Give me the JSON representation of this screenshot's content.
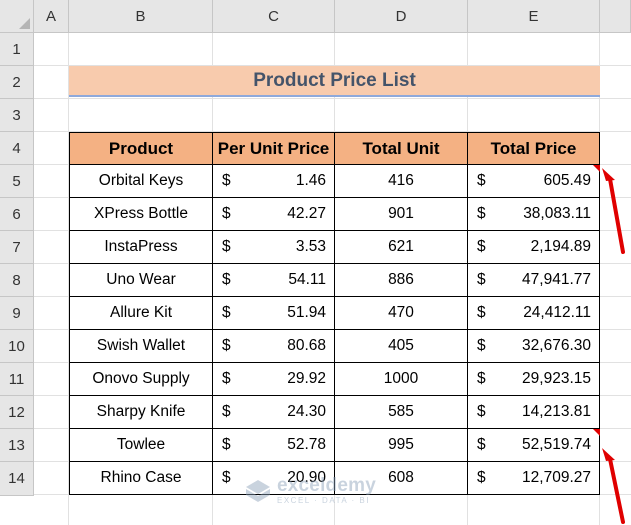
{
  "column_headers": [
    "A",
    "B",
    "C",
    "D",
    "E"
  ],
  "row_headers": [
    "1",
    "2",
    "3",
    "4",
    "5",
    "6",
    "7",
    "8",
    "9",
    "10",
    "11",
    "12",
    "13",
    "14"
  ],
  "title": "Product Price List",
  "table": {
    "headers": [
      "Product",
      "Per Unit Price",
      "Total Unit",
      "Total Price"
    ],
    "currency_symbol": "$",
    "rows": [
      {
        "product": "Orbital Keys",
        "unit_price": "1.46",
        "total_unit": "416",
        "total_price": "605.49"
      },
      {
        "product": "XPress Bottle",
        "unit_price": "42.27",
        "total_unit": "901",
        "total_price": "38,083.11"
      },
      {
        "product": "InstaPress",
        "unit_price": "3.53",
        "total_unit": "621",
        "total_price": "2,194.89"
      },
      {
        "product": "Uno Wear",
        "unit_price": "54.11",
        "total_unit": "886",
        "total_price": "47,941.77"
      },
      {
        "product": "Allure Kit",
        "unit_price": "51.94",
        "total_unit": "470",
        "total_price": "24,412.11"
      },
      {
        "product": "Swish Wallet",
        "unit_price": "80.68",
        "total_unit": "405",
        "total_price": "32,676.30"
      },
      {
        "product": "Onovo Supply",
        "unit_price": "29.92",
        "total_unit": "1000",
        "total_price": "29,923.15"
      },
      {
        "product": "Sharpy Knife",
        "unit_price": "24.30",
        "total_unit": "585",
        "total_price": "14,213.81"
      },
      {
        "product": "Towlee",
        "unit_price": "52.78",
        "total_unit": "995",
        "total_price": "52,519.74"
      },
      {
        "product": "Rhino Case",
        "unit_price": "20.90",
        "total_unit": "608",
        "total_price": "12,709.27"
      }
    ]
  },
  "watermark": {
    "brand": "exceldemy",
    "tagline": "EXCEL · DATA · BI"
  },
  "colors": {
    "header_fill": "#f4b183",
    "title_fill": "#f8cbad",
    "title_text": "#44546a",
    "annotation": "#e00000"
  }
}
